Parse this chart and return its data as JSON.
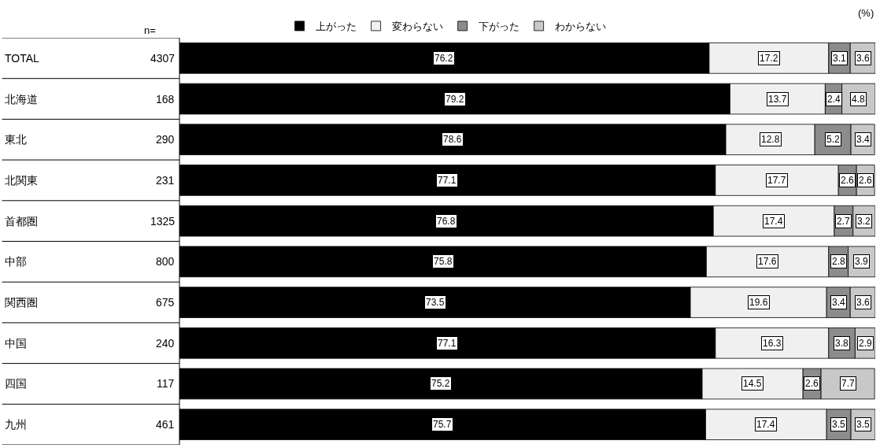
{
  "chart_data": {
    "type": "bar",
    "orientation": "horizontal",
    "stacked": true,
    "data_labels": true,
    "legend": "top",
    "categories": [
      "TOTAL",
      "北海道",
      "東北",
      "北関東",
      "首都圏",
      "中部",
      "関西圏",
      "中国",
      "四国",
      "九州"
    ],
    "series": [
      {
        "name": "上がった",
        "color": "#000000",
        "values": [
          76.2,
          79.2,
          78.6,
          77.1,
          76.8,
          75.8,
          73.5,
          77.1,
          75.2,
          75.7
        ]
      },
      {
        "name": "変わらない",
        "color": "#f0f0f0",
        "values": [
          17.2,
          13.7,
          12.8,
          17.7,
          17.4,
          17.6,
          19.6,
          16.3,
          14.5,
          17.4
        ]
      },
      {
        "name": "下がった",
        "color": "#8c8c8c",
        "values": [
          3.1,
          2.4,
          5.2,
          2.6,
          2.7,
          2.8,
          3.4,
          3.8,
          2.6,
          3.5
        ]
      },
      {
        "name": "わからない",
        "color": "#c8c8c8",
        "values": [
          3.6,
          4.8,
          3.4,
          2.6,
          3.2,
          3.9,
          3.6,
          2.9,
          7.7,
          3.5
        ]
      }
    ],
    "annotations": [
      "(%)",
      "n=",
      "4307",
      "168",
      "290",
      "231",
      "1325",
      "800",
      "675",
      "240",
      "117",
      "461"
    ]
  }
}
